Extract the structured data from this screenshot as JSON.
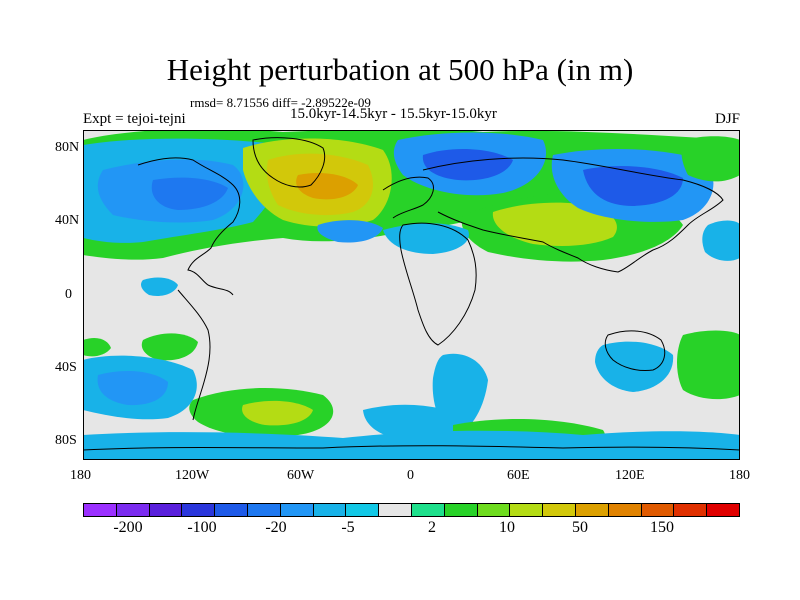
{
  "title": "Height perturbation at 500 hPa (in m)",
  "stats": "rmsd= 8.71556 diff= -2.89522e-09",
  "experiment": "Expt = tejoi-tejni",
  "period": "15.0kyr-14.5kyr - 15.5kyr-15.0kyr",
  "season": "DJF",
  "axes": {
    "y_labels": [
      "80N",
      "40N",
      "0",
      "40S",
      "80S"
    ],
    "x_labels": [
      "180",
      "120W",
      "60W",
      "0",
      "60E",
      "120E",
      "180"
    ]
  },
  "colorbar": {
    "colors": [
      "#9b30ff",
      "#7b2cf0",
      "#5a20dc",
      "#2a36dc",
      "#1e5ae8",
      "#1e78f0",
      "#2296f5",
      "#18b2e8",
      "#12c8e6",
      "#e6e6e6",
      "#1ee08c",
      "#28d228",
      "#6edc1e",
      "#b4dc14",
      "#d2c80a",
      "#dca000",
      "#e08200",
      "#e05a00",
      "#e03000",
      "#e00000"
    ],
    "labels": [
      "-200",
      "-100",
      "-20",
      "-5",
      "2",
      "10",
      "50",
      "150"
    ]
  },
  "chart_data": {
    "type": "filled-contour-map",
    "variable": "500 hPa geopotential height perturbation (m)",
    "lon_range": [
      -180,
      180
    ],
    "lat_range": [
      -90,
      90
    ],
    "levels": [
      -200,
      -100,
      -20,
      -5,
      2,
      10,
      50,
      150
    ],
    "features": [
      {
        "name": "Greenland / North Atlantic",
        "sign": "positive",
        "approx_peak_m": 50
      },
      {
        "name": "Northern Europe / Scandinavia",
        "sign": "negative",
        "approx_peak_m": -100
      },
      {
        "name": "Central Asia",
        "sign": "positive",
        "approx_peak_m": 10
      },
      {
        "name": "North Pacific",
        "sign": "negative",
        "approx_peak_m": -100
      },
      {
        "name": "North America",
        "sign": "negative",
        "approx_peak_m": -20
      },
      {
        "name": "Southern Ocean Pacific sector",
        "sign": "negative",
        "approx_peak_m": -20
      },
      {
        "name": "South Atlantic",
        "sign": "negative",
        "approx_peak_m": -5
      },
      {
        "name": "Antarctic margin",
        "sign": "positive",
        "approx_peak_m": 10
      }
    ]
  }
}
